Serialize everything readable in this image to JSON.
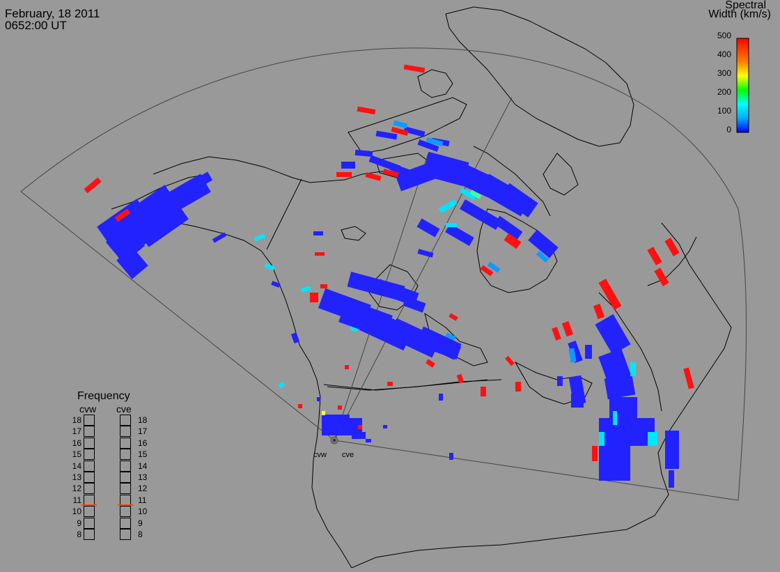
{
  "header": {
    "date": "February, 18 2011",
    "time": "0652:00 UT"
  },
  "colorbar": {
    "title_line1": "Spectral",
    "title_line2": "Width (km/s)",
    "ticks": [
      "500",
      "400",
      "300",
      "200",
      "100",
      "0"
    ],
    "range": [
      0,
      500
    ],
    "colors": [
      "#0000ff",
      "#00aaff",
      "#00ffff",
      "#00ff00",
      "#ffff00",
      "#ff8000",
      "#ff0000"
    ]
  },
  "frequency": {
    "title": "Frequency",
    "radars": [
      {
        "name": "cvw",
        "selected_mhz": 11
      },
      {
        "name": "cve",
        "selected_mhz": 11
      }
    ],
    "levels": [
      "18",
      "17",
      "16",
      "15",
      "14",
      "13",
      "12",
      "11",
      "10",
      "9",
      "8"
    ]
  },
  "radar_sites": [
    {
      "name": "cvw"
    },
    {
      "name": "cve"
    }
  ],
  "colors": {
    "background": "#999999",
    "coast": "#000000",
    "marker": "#ff4400"
  }
}
